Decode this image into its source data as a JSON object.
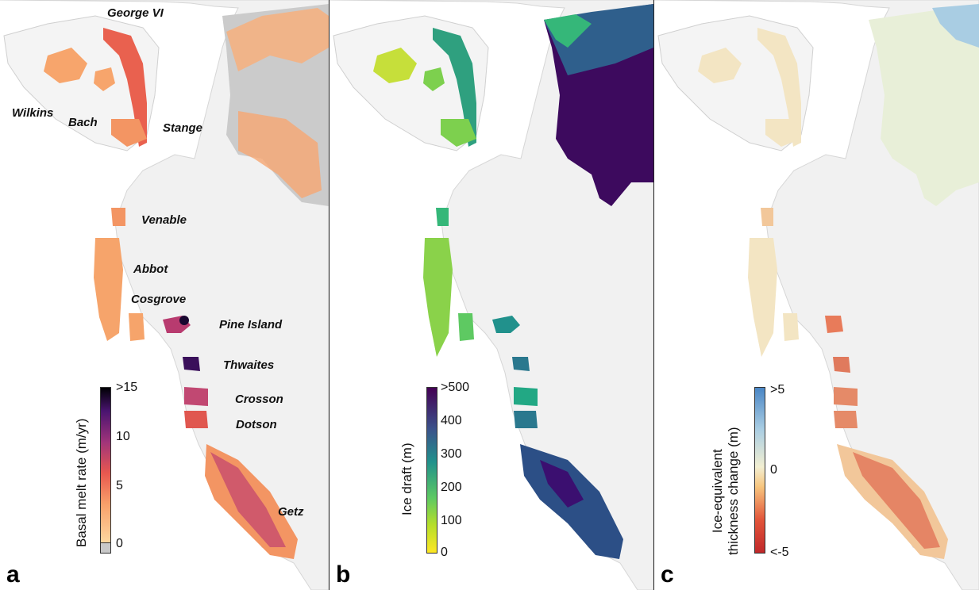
{
  "panels": [
    {
      "letter": "a",
      "colorbar": {
        "title": "Basal melt rate (m/yr)",
        "ticks": [
          ">15",
          "10",
          "5",
          "0"
        ],
        "colors": [
          "#000004",
          "#3b0f70",
          "#8c2981",
          "#de4968",
          "#f66e5b",
          "#fe9f6d",
          "#fdd8a0"
        ],
        "nodata_color": "#c8c8c8"
      },
      "labels": [
        "George VI",
        "Wilkins",
        "Bach",
        "Stange",
        "Venable",
        "Abbot",
        "Cosgrove",
        "Pine Island",
        "Thwaites",
        "Crosson",
        "Dotson",
        "Getz"
      ]
    },
    {
      "letter": "b",
      "colorbar": {
        "title": "Ice draft (m)",
        "ticks": [
          ">500",
          "400",
          "300",
          "200",
          "100",
          "0"
        ],
        "colors": [
          "#440154",
          "#3b528b",
          "#21918c",
          "#5ec962",
          "#b5de2b",
          "#fde725"
        ]
      }
    },
    {
      "letter": "c",
      "colorbar": {
        "title_lines": [
          "Ice-equivalent",
          "thickness change (m)"
        ],
        "ticks": [
          ">5",
          "0",
          "<-5"
        ],
        "colors": [
          "#4a86c5",
          "#a9cde3",
          "#f2efd2",
          "#f7c57e",
          "#e2553a",
          "#c0282a"
        ]
      }
    }
  ]
}
